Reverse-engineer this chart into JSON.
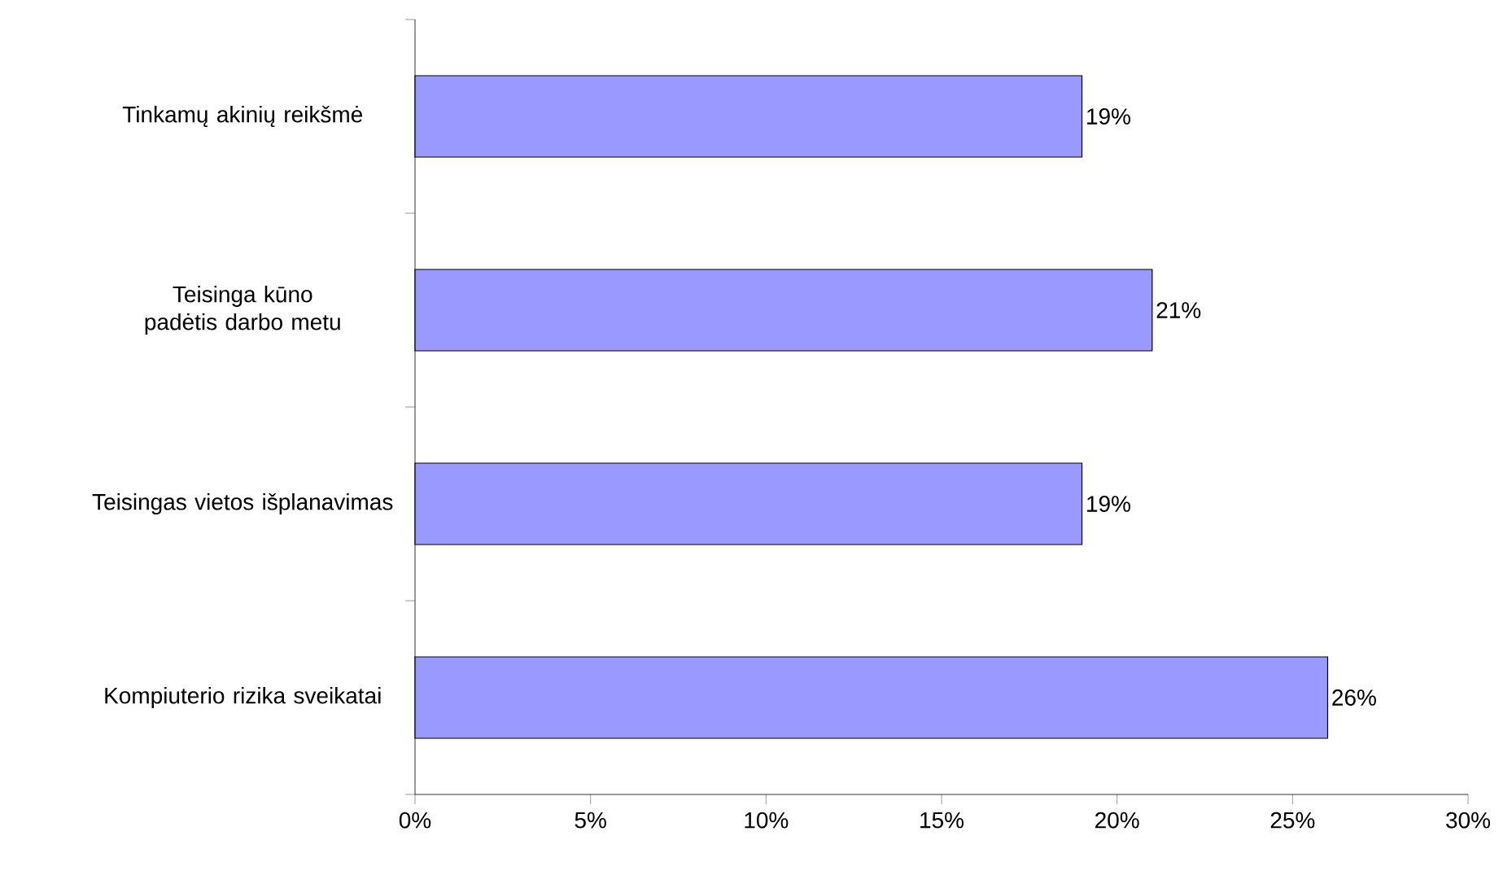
{
  "chart_data": {
    "type": "bar",
    "orientation": "horizontal",
    "categories": [
      "Tinkamų akinių reikšmė",
      "Teisinga kūno padėtis darbo metu",
      "Teisingas vietos išplanavimas",
      "Kompiuterio rizika sveikatai"
    ],
    "values": [
      19,
      21,
      19,
      26
    ],
    "value_labels": [
      "19%",
      "21%",
      "19%",
      "26%"
    ],
    "color": "#9999ff",
    "xlim": [
      0,
      30
    ],
    "xticks": [
      {
        "value": 0,
        "label": "0%"
      },
      {
        "value": 5,
        "label": "5%"
      },
      {
        "value": 10,
        "label": "10%"
      },
      {
        "value": 15,
        "label": "15%"
      },
      {
        "value": 20,
        "label": "20%"
      },
      {
        "value": 25,
        "label": "25%"
      },
      {
        "value": 30,
        "label": "30%"
      }
    ]
  }
}
